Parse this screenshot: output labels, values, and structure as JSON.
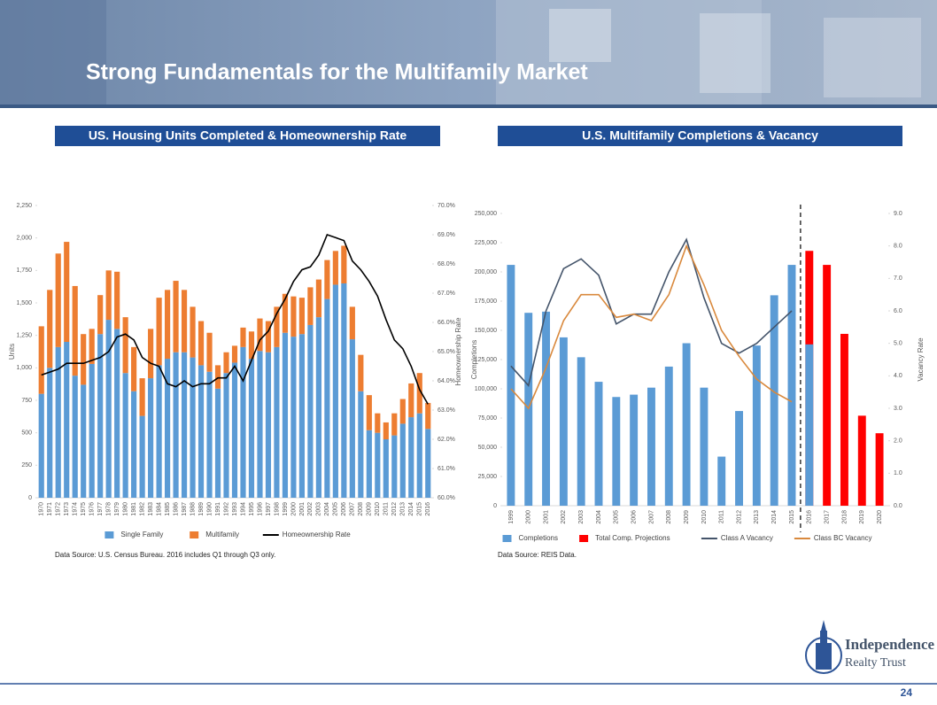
{
  "header": {
    "title": "Strong Fundamentals for the Multifamily Market"
  },
  "chart_data": [
    {
      "type": "bar",
      "title": "US. Housing Units Completed & Homeownership Rate",
      "stacked": true,
      "grid": false,
      "y_label": "Units",
      "y2_label": "Homeownership Rate",
      "source": "Data Source: U.S. Census Bureau.  2016 includes Q1 through Q3 only.",
      "categories": [
        "1970",
        "1971",
        "1972",
        "1973",
        "1974",
        "1975",
        "1976",
        "1977",
        "1978",
        "1979",
        "1980",
        "1981",
        "1982",
        "1983",
        "1984",
        "1985",
        "1986",
        "1987",
        "1988",
        "1989",
        "1990",
        "1991",
        "1992",
        "1993",
        "1994",
        "1995",
        "1996",
        "1997",
        "1998",
        "1999",
        "2000",
        "2001",
        "2002",
        "2003",
        "2004",
        "2005",
        "2006",
        "2007",
        "2008",
        "2009",
        "2010",
        "2011",
        "2012",
        "2013",
        "2014",
        "2015",
        "2016"
      ],
      "ylim": [
        0,
        2250
      ],
      "yticks": [
        0,
        250,
        500,
        750,
        {
          "value": 1000,
          "label": "1,000"
        },
        {
          "value": 1250,
          "label": "1,250"
        },
        {
          "value": 1500,
          "label": "1,500"
        },
        {
          "value": 1750,
          "label": "1,750"
        },
        {
          "value": 2000,
          "label": "2,000"
        },
        {
          "value": 2250,
          "label": "2,250"
        }
      ],
      "y2lim": [
        60,
        70
      ],
      "y2ticks": [
        {
          "value": 60,
          "label": "60.0%"
        },
        {
          "value": 61,
          "label": "61.0%"
        },
        {
          "value": 62,
          "label": "62.0%"
        },
        {
          "value": 63,
          "label": "63.0%"
        },
        {
          "value": 64,
          "label": "64.0%"
        },
        {
          "value": 65,
          "label": "65.0%"
        },
        {
          "value": 66,
          "label": "66.0%"
        },
        {
          "value": 67,
          "label": "67.0%"
        },
        {
          "value": 68,
          "label": "68.0%"
        },
        {
          "value": 69,
          "label": "69.0%"
        },
        {
          "value": 70,
          "label": "70.0%"
        }
      ],
      "series": [
        {
          "name": "Single Family",
          "type": "bar",
          "color": "#5b9bd5",
          "values": [
            800,
            1000,
            1160,
            1200,
            940,
            870,
            1030,
            1260,
            1370,
            1300,
            960,
            820,
            630,
            920,
            1020,
            1070,
            1120,
            1120,
            1080,
            1020,
            970,
            840,
            960,
            1040,
            1160,
            1070,
            1130,
            1120,
            1160,
            1270,
            1240,
            1260,
            1330,
            1390,
            1530,
            1640,
            1650,
            1220,
            820,
            520,
            500,
            450,
            480,
            570,
            620,
            650,
            530
          ]
        },
        {
          "name": "Multifamily",
          "type": "bar",
          "color": "#ed7d31",
          "values": [
            520,
            600,
            720,
            770,
            690,
            390,
            270,
            300,
            380,
            440,
            430,
            340,
            290,
            380,
            520,
            530,
            550,
            480,
            390,
            340,
            300,
            180,
            160,
            130,
            150,
            210,
            250,
            240,
            310,
            300,
            310,
            280,
            290,
            290,
            300,
            260,
            290,
            250,
            280,
            270,
            150,
            130,
            170,
            190,
            260,
            310,
            200
          ]
        },
        {
          "name": "Homeownership Rate",
          "type": "line",
          "axis": "y2",
          "color": "#000000",
          "values": [
            64.2,
            64.3,
            64.4,
            64.6,
            64.6,
            64.6,
            64.7,
            64.8,
            65.0,
            65.5,
            65.6,
            65.4,
            64.8,
            64.6,
            64.5,
            63.9,
            63.8,
            64.0,
            63.8,
            63.9,
            63.9,
            64.1,
            64.1,
            64.5,
            64.0,
            64.7,
            65.4,
            65.7,
            66.3,
            66.8,
            67.4,
            67.8,
            67.9,
            68.3,
            69.0,
            68.9,
            68.8,
            68.1,
            67.8,
            67.4,
            66.9,
            66.1,
            65.4,
            65.1,
            64.5,
            63.7,
            63.2
          ]
        }
      ]
    },
    {
      "type": "bar",
      "title": "U.S. Multifamily Completions & Vacancy",
      "stacked": false,
      "grid": false,
      "y_label": "Completions",
      "y2_label": "Vacancy Rate",
      "source": "Data Source: REIS Data.",
      "categories": [
        "1999",
        "2000",
        "2001",
        "2002",
        "2003",
        "2004",
        "2005",
        "2006",
        "2007",
        "2008",
        "2009",
        "2010",
        "2011",
        "2012",
        "2013",
        "2014",
        "2015",
        "2016",
        "2017",
        "2018",
        "2019",
        "2020"
      ],
      "ylim": [
        0,
        250000
      ],
      "yticks": [
        0,
        {
          "value": 25000,
          "label": "25,000"
        },
        {
          "value": 50000,
          "label": "50,000"
        },
        {
          "value": 75000,
          "label": "75,000"
        },
        {
          "value": 100000,
          "label": "100,000"
        },
        {
          "value": 125000,
          "label": "125,000"
        },
        {
          "value": 150000,
          "label": "150,000"
        },
        {
          "value": 175000,
          "label": "175,000"
        },
        {
          "value": 200000,
          "label": "200,000"
        },
        {
          "value": 225000,
          "label": "225,000"
        },
        {
          "value": 250000,
          "label": "250,000"
        }
      ],
      "y2lim": [
        0,
        9
      ],
      "y2ticks": [
        {
          "value": 0,
          "label": "0.0"
        },
        {
          "value": 1,
          "label": "1.0"
        },
        {
          "value": 2,
          "label": "2.0"
        },
        {
          "value": 3,
          "label": "3.0"
        },
        {
          "value": 4,
          "label": "4.0"
        },
        {
          "value": 5,
          "label": "5.0"
        },
        {
          "value": 6,
          "label": "6.0"
        },
        {
          "value": 7,
          "label": "7.0"
        },
        {
          "value": 8,
          "label": "8.0"
        },
        {
          "value": 9,
          "label": "9.0"
        }
      ],
      "series": [
        {
          "name": "Completions",
          "type": "bar",
          "color": "#5b9bd5",
          "values": [
            206000,
            165000,
            166000,
            144000,
            127000,
            106000,
            93000,
            95000,
            101000,
            119000,
            139000,
            101000,
            42000,
            81000,
            137000,
            180000,
            206000,
            138000,
            null,
            null,
            null,
            null
          ]
        },
        {
          "name": "Total Comp. Projections",
          "type": "bar",
          "color": "#ff0000",
          "values": [
            null,
            null,
            null,
            null,
            null,
            null,
            null,
            null,
            null,
            null,
            null,
            null,
            null,
            null,
            null,
            null,
            null,
            218000,
            206000,
            147000,
            77000,
            62000
          ]
        },
        {
          "name": "Class A Vacancy",
          "type": "line",
          "axis": "y2",
          "color": "#44546a",
          "values": [
            4.3,
            3.7,
            6.0,
            7.3,
            7.6,
            7.1,
            5.6,
            5.9,
            5.9,
            7.2,
            8.2,
            6.4,
            5.0,
            4.7,
            5.0,
            5.5,
            6.0,
            null,
            null,
            null,
            null,
            null
          ]
        },
        {
          "name": "Class BC Vacancy",
          "type": "line",
          "axis": "y2",
          "color": "#d9893d",
          "values": [
            3.6,
            3.0,
            4.25,
            5.7,
            6.5,
            6.5,
            5.8,
            5.9,
            5.7,
            6.5,
            8.0,
            6.8,
            5.4,
            4.6,
            3.9,
            3.5,
            3.2,
            null,
            null,
            null,
            null,
            null
          ]
        }
      ]
    }
  ],
  "logo": {
    "line1": "Independence",
    "line2": "Realty Trust"
  },
  "footer": {
    "page": "24"
  }
}
